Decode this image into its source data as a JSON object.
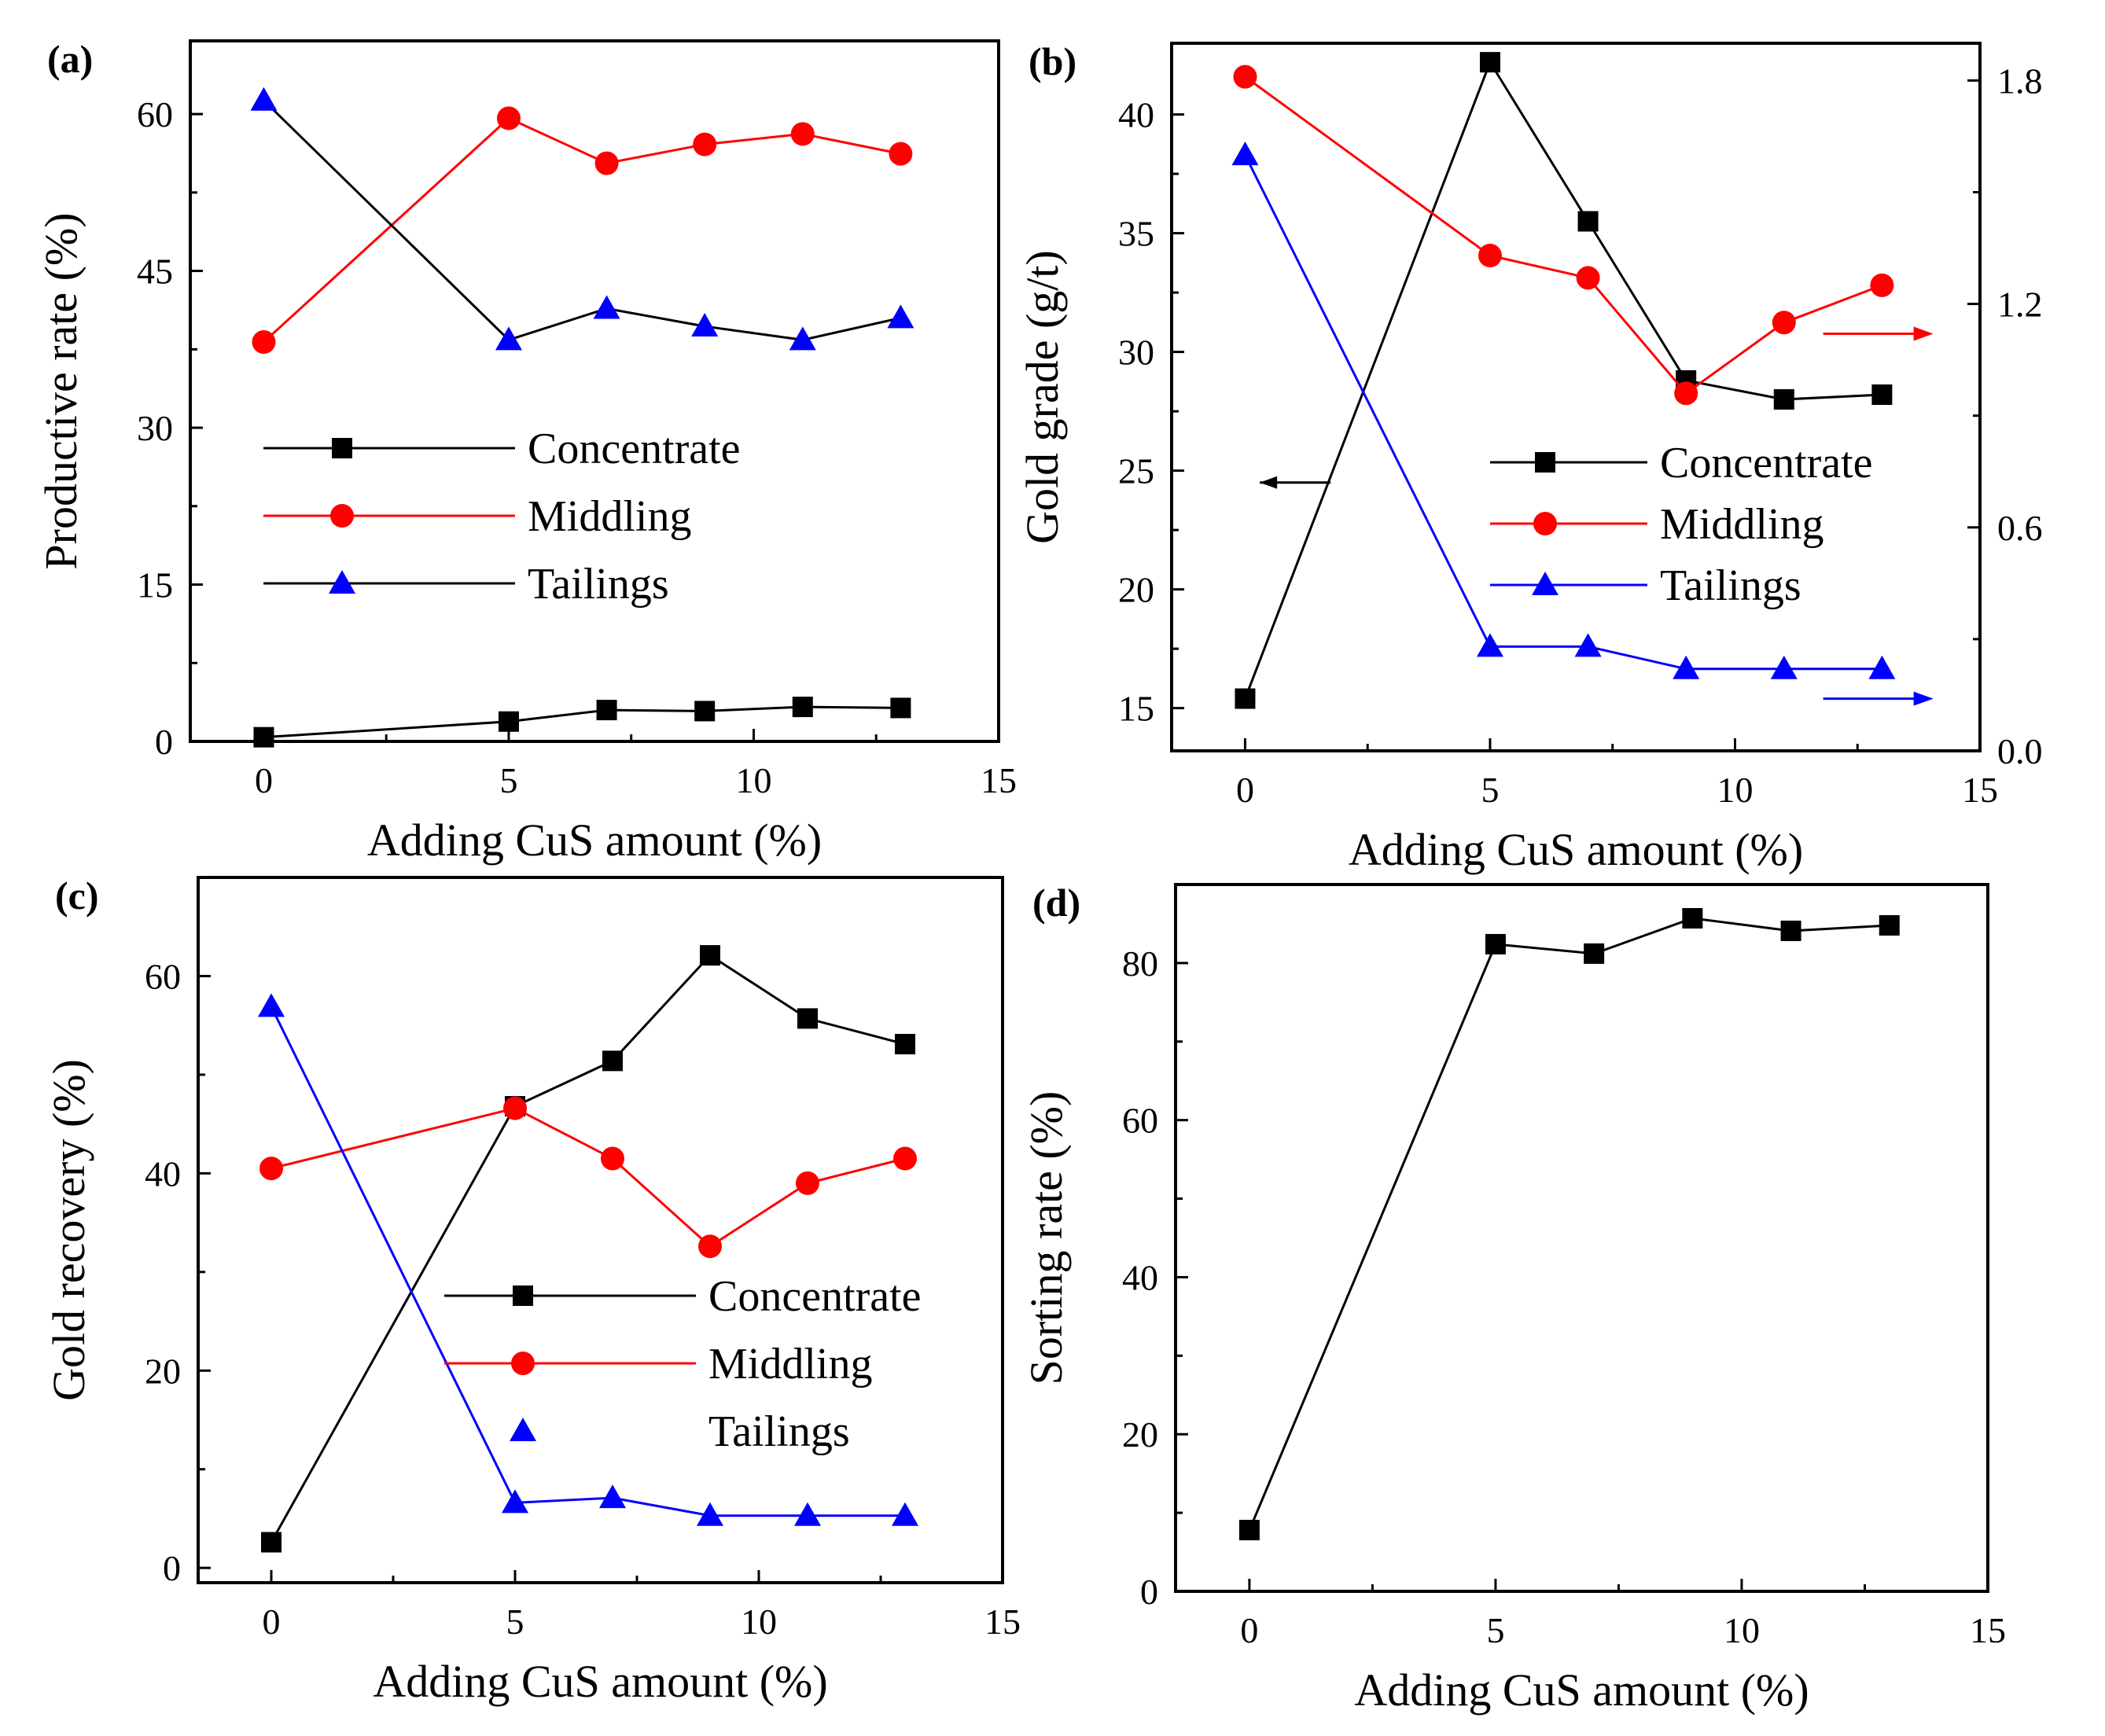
{
  "figure": {
    "panels": [
      {
        "id": "a",
        "letter": "(a)"
      },
      {
        "id": "b",
        "letter": "(b)"
      },
      {
        "id": "c",
        "letter": "(c)"
      },
      {
        "id": "d",
        "letter": "(d)"
      }
    ]
  },
  "colors": {
    "concentrate": "#000000",
    "middling": "#ff0000",
    "tailings": "#0000ff"
  },
  "chart_data": [
    {
      "id": "a",
      "type": "line",
      "title": "(a)",
      "xlabel": "Adding CuS amount (%)",
      "ylabel": "Productive rate (%)",
      "xlim": [
        -1.5,
        15
      ],
      "ylim": [
        0,
        67
      ],
      "xticks": [
        0,
        5,
        10,
        15
      ],
      "yticks": [
        0,
        15,
        30,
        45,
        60
      ],
      "x": [
        0,
        5,
        7,
        9,
        11,
        13
      ],
      "series": [
        {
          "name": "Concentrate",
          "marker": "square",
          "color": "#000000",
          "values": [
            0.4,
            1.9,
            3.0,
            2.9,
            3.3,
            3.2
          ]
        },
        {
          "name": "Middling",
          "marker": "circle",
          "color": "#ff0000",
          "values": [
            38.2,
            59.6,
            55.3,
            57.1,
            58.1,
            56.2
          ]
        },
        {
          "name": "Tailings",
          "marker": "triangle",
          "color": "#0000ff",
          "line_color": "#000000",
          "values": [
            61.3,
            38.4,
            41.4,
            39.7,
            38.4,
            40.5
          ]
        }
      ],
      "legend": [
        "Concentrate",
        "Middling",
        "Tailings"
      ]
    },
    {
      "id": "b",
      "type": "line",
      "title": "(b)",
      "xlabel": "Adding CuS amount (%)",
      "ylabel": "Gold grade (g/t)",
      "xlim": [
        -1.5,
        15
      ],
      "ylim": [
        13.2,
        43
      ],
      "ylim_right": [
        0.0,
        1.9
      ],
      "xticks": [
        0,
        5,
        10,
        15
      ],
      "yticks": [
        15,
        20,
        25,
        30,
        35,
        40
      ],
      "yticks_right": [
        "0.0",
        "0.6",
        "1.2",
        "1.8"
      ],
      "x": [
        0,
        5,
        7,
        9,
        11,
        13
      ],
      "series": [
        {
          "name": "Concentrate",
          "marker": "square",
          "color": "#000000",
          "axis": "left",
          "values": [
            15.4,
            42.2,
            35.5,
            28.8,
            28.0,
            28.2
          ]
        },
        {
          "name": "Middling",
          "marker": "circle",
          "color": "#ff0000",
          "axis": "right",
          "values": [
            1.81,
            1.33,
            1.27,
            0.96,
            1.15,
            1.25
          ]
        },
        {
          "name": "Tailings",
          "marker": "triangle",
          "color": "#0000ff",
          "axis": "right",
          "values": [
            1.6,
            0.28,
            0.28,
            0.22,
            0.22,
            0.22
          ]
        }
      ],
      "legend": [
        "Concentrate",
        "Middling",
        "Tailings"
      ]
    },
    {
      "id": "c",
      "type": "line",
      "title": "(c)",
      "xlabel": "Adding CuS amount (%)",
      "ylabel": "Gold recovery (%)",
      "xlim": [
        -1.5,
        15
      ],
      "ylim": [
        -1.5,
        70
      ],
      "xticks": [
        0,
        5,
        10,
        15
      ],
      "yticks": [
        0,
        20,
        40,
        60
      ],
      "x": [
        0,
        5,
        7,
        9,
        11,
        13
      ],
      "series": [
        {
          "name": "Concentrate",
          "marker": "square",
          "color": "#000000",
          "values": [
            2.6,
            46.8,
            51.4,
            62.1,
            55.7,
            53.1
          ]
        },
        {
          "name": "Middling",
          "marker": "circle",
          "color": "#ff0000",
          "values": [
            40.5,
            46.6,
            41.5,
            32.6,
            39.0,
            41.5
          ]
        },
        {
          "name": "Tailings",
          "marker": "triangle",
          "color": "#0000ff",
          "values": [
            56.9,
            6.6,
            7.1,
            5.3,
            5.3,
            5.3
          ]
        }
      ],
      "legend": [
        "Concentrate",
        "Middling",
        "Tailings"
      ]
    },
    {
      "id": "d",
      "type": "line",
      "title": "(d)",
      "xlabel": "Adding CuS amount (%)",
      "ylabel": "Sorting rate (%)",
      "xlim": [
        -1.5,
        15
      ],
      "ylim": [
        0,
        90
      ],
      "xticks": [
        0,
        5,
        10,
        15
      ],
      "yticks": [
        0,
        20,
        40,
        60,
        80
      ],
      "x": [
        0,
        5,
        7,
        9,
        11,
        13
      ],
      "series": [
        {
          "name": "Sorting rate",
          "marker": "square",
          "color": "#000000",
          "values": [
            7.8,
            82.4,
            81.2,
            85.7,
            84.1,
            84.8
          ]
        }
      ]
    }
  ]
}
